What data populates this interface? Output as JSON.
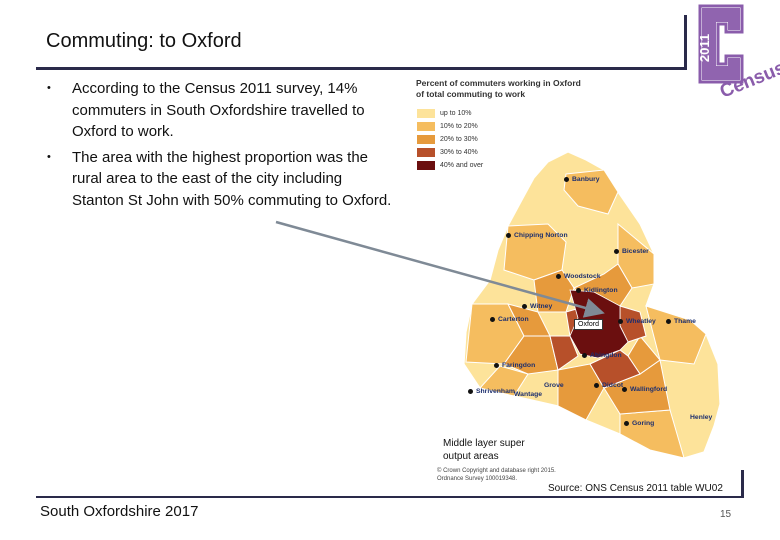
{
  "slide": {
    "title": "Commuting: to Oxford",
    "bullets": [
      "According to the Census 2011 survey, 14% commuters in South Oxfordshire travelled to Oxford to work.",
      "The area with the highest proportion was the rural area to the east of the city including Stanton St John with 50% commuting to Oxford."
    ],
    "bullet_glyph": "•",
    "logo": {
      "year": "2011",
      "word": "Census",
      "color": "#8a5cab"
    },
    "footer_left": "South Oxfordshire  2017",
    "source": "Source: ONS Census 2011 table WU02",
    "page_number": "15"
  },
  "map": {
    "legend_title_line1": "Percent of commuters working in Oxford",
    "legend_title_line2": "of total commuting to work",
    "legend": [
      {
        "label": "up to 10%",
        "color": "#fde39a"
      },
      {
        "label": "10% to 20%",
        "color": "#f5bd5f"
      },
      {
        "label": "20% to 30%",
        "color": "#e69a3c"
      },
      {
        "label": "30% to 40%",
        "color": "#b7502a"
      },
      {
        "label": "40% and over",
        "color": "#6b0f0f"
      }
    ],
    "towns": {
      "banbury": "Banbury",
      "chipping_norton": "Chipping Norton",
      "bicester": "Bicester",
      "woodstock": "Woodstock",
      "kidlington": "Kidlington",
      "witney": "Witney",
      "carterton": "Carterton",
      "oxford": "Oxford",
      "wheatley": "Wheatley",
      "thame": "Thame",
      "abingdon": "Abingdon",
      "faringdon": "Faringdon",
      "grove": "Grove",
      "didcot": "Didcot",
      "wallingford": "Wallingford",
      "shrivenham": "Shrivenham",
      "wantage": "Wantage",
      "henley": "Henley",
      "goring": "Goring"
    },
    "caption_line1": "Middle layer super",
    "caption_line2": "output areas",
    "copyright_line1": "© Crown Copyright and database right 2015.",
    "copyright_line2": "Ordnance Survey 100019348."
  }
}
